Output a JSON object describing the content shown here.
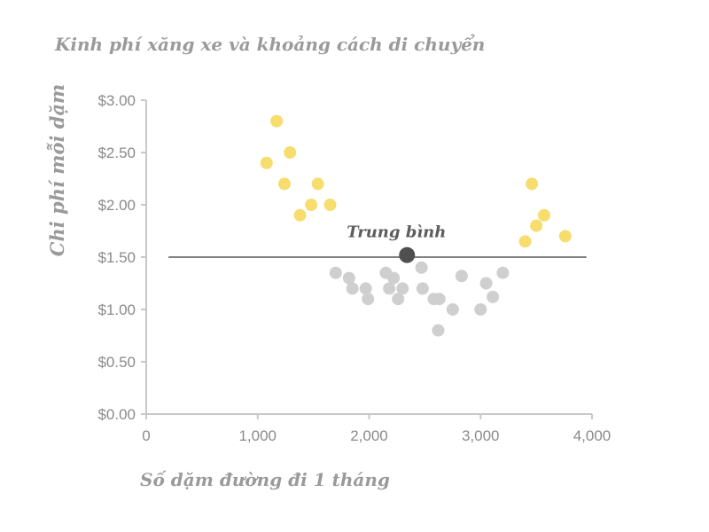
{
  "chart_data": {
    "type": "scatter",
    "title": "Kinh phí xăng xe và khoảng cách di chuyển",
    "xlabel": "Số dặm đường đi 1 tháng",
    "ylabel": "Chi phí mỗi dặm",
    "xlim": [
      0,
      4000
    ],
    "ylim": [
      0,
      3
    ],
    "xticks": [
      0,
      1000,
      2000,
      3000,
      4000
    ],
    "xtick_labels": [
      "0",
      "1,000",
      "2,000",
      "3,000",
      "4,000"
    ],
    "yticks": [
      0,
      0.5,
      1,
      1.5,
      2,
      2.5,
      3
    ],
    "ytick_labels": [
      "$0.00",
      "$0.50",
      "$1.00",
      "$1.50",
      "$2.00",
      "$2.50",
      "$3.00"
    ],
    "grid": false,
    "colors": {
      "above": "#f7dd6e",
      "below": "#cfcfcf",
      "average": "#4f4f4f",
      "reference_line": "#000000"
    },
    "series": [
      {
        "group": "above",
        "points": [
          [
            1080,
            2.4
          ],
          [
            1170,
            2.8
          ],
          [
            1240,
            2.2
          ],
          [
            1290,
            2.5
          ],
          [
            1380,
            1.9
          ],
          [
            1480,
            2.0
          ],
          [
            1540,
            2.2
          ],
          [
            1650,
            2.0
          ],
          [
            3400,
            1.65
          ],
          [
            3460,
            2.2
          ],
          [
            3500,
            1.8
          ],
          [
            3570,
            1.9
          ],
          [
            3760,
            1.7
          ]
        ]
      },
      {
        "group": "below",
        "points": [
          [
            1700,
            1.35
          ],
          [
            1820,
            1.3
          ],
          [
            1850,
            1.2
          ],
          [
            1970,
            1.2
          ],
          [
            1990,
            1.1
          ],
          [
            2150,
            1.35
          ],
          [
            2180,
            1.2
          ],
          [
            2220,
            1.3
          ],
          [
            2260,
            1.1
          ],
          [
            2300,
            1.2
          ],
          [
            2470,
            1.4
          ],
          [
            2480,
            1.2
          ],
          [
            2580,
            1.1
          ],
          [
            2620,
            0.8
          ],
          [
            2630,
            1.1
          ],
          [
            2750,
            1.0
          ],
          [
            2830,
            1.32
          ],
          [
            3000,
            1.0
          ],
          [
            3050,
            1.25
          ],
          [
            3110,
            1.12
          ],
          [
            3200,
            1.35
          ]
        ]
      },
      {
        "group": "average",
        "points": [
          [
            2340,
            1.52
          ]
        ]
      }
    ],
    "reference_line": {
      "y": 1.5,
      "x_range": [
        200,
        3950
      ]
    },
    "annotations": [
      {
        "text": "Trung bình",
        "x": 2340,
        "y": 1.52
      }
    ]
  }
}
